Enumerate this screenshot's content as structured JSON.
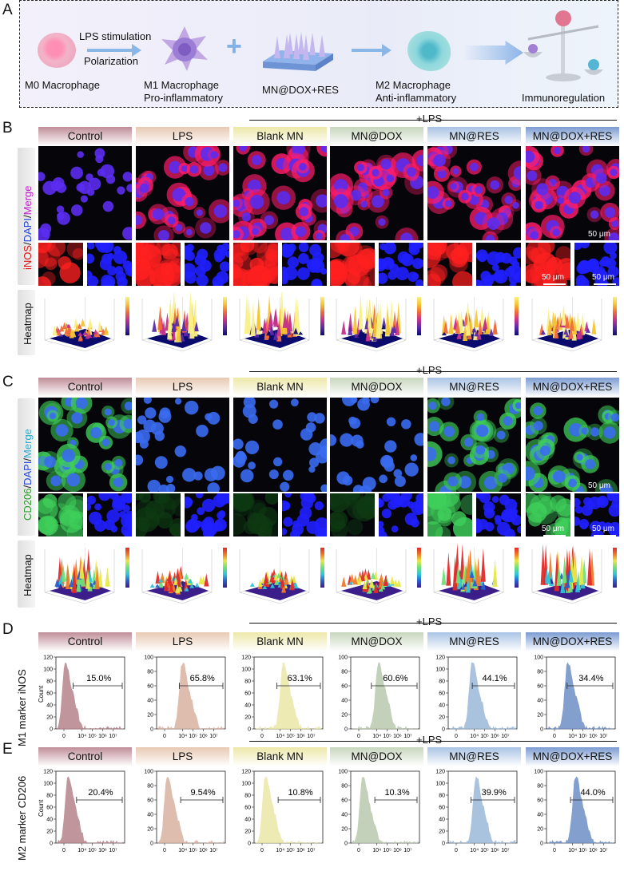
{
  "panel_labels": {
    "a": "A",
    "b": "B",
    "c": "C",
    "d": "D",
    "e": "E"
  },
  "panel_a": {
    "m0": "M0 Macrophage",
    "arrow1_top": "LPS stimulation",
    "arrow1_bottom": "Polarization",
    "m1_line1": "M1 Macrophage",
    "m1_line2": "Pro-inflammatory",
    "plus": "+",
    "mn": "MN@DOX+RES",
    "m2_line1": "M2 Macrophage",
    "m2_line2": "Anti-inflammatory",
    "immuno": "Immunoregulation"
  },
  "groups": [
    "Control",
    "LPS",
    "Blank MN",
    "MN@DOX",
    "MN@RES",
    "MN@DOX+RES"
  ],
  "lps_label": "+LPS",
  "panel_b": {
    "row_merge_label_parts": [
      "iNOS",
      "/",
      "DAPI",
      "/",
      "Merge"
    ],
    "row_heat_label": "Heatmap",
    "scale_big": "50 μm",
    "scale_small": "50 μm"
  },
  "panel_c": {
    "row_merge_label_parts": [
      "CD206",
      "/",
      "DAPI",
      "/",
      "Merge"
    ],
    "row_heat_label": "Heatmap",
    "scale_big": "50 μm",
    "scale_small": "50 μm"
  },
  "panel_d": {
    "ylabel": "M1 marker iNOS",
    "count": "Count",
    "percentages": [
      "15.0%",
      "65.8%",
      "63.1%",
      "60.6%",
      "44.1%",
      "34.4%"
    ],
    "x_ticks": [
      "0",
      "10⁴",
      "10⁵",
      "10⁶",
      "10⁷"
    ],
    "y_ticks_a": [
      "120",
      "100",
      "80",
      "60",
      "40",
      "20",
      "0"
    ],
    "y_ticks_b": [
      "100",
      "80",
      "60",
      "40",
      "20",
      "0"
    ],
    "peak_pos": [
      0.12,
      0.37,
      0.42,
      0.4,
      0.34,
      0.3
    ],
    "gate_start": [
      0.25,
      0.33,
      0.33,
      0.3,
      0.35,
      0.3
    ],
    "colors": [
      "#b7838b",
      "#d9b1a0",
      "#ece7a8",
      "#b9c9ae",
      "#9bb8d9",
      "#6e8fc6"
    ]
  },
  "panel_e": {
    "ylabel": "M2 marker CD206",
    "count": "Count",
    "percentages": [
      "20.4%",
      "9.54%",
      "10.8%",
      "10.3%",
      "39.9%",
      "44.0%"
    ],
    "x_ticks": [
      "0",
      "10⁴",
      "10⁵",
      "10⁶",
      "10⁷"
    ],
    "y_ticks_a": [
      "120",
      "100",
      "80",
      "60",
      "40",
      "20",
      "0"
    ],
    "y_ticks_b": [
      "100",
      "80",
      "60",
      "40",
      "20",
      "0"
    ],
    "peak_pos": [
      0.16,
      0.14,
      0.15,
      0.16,
      0.4,
      0.42
    ],
    "gate_start": [
      0.3,
      0.35,
      0.35,
      0.35,
      0.33,
      0.35
    ],
    "colors": [
      "#b7838b",
      "#d9b1a0",
      "#ece7a8",
      "#b9c9ae",
      "#9bb8d9",
      "#6e8fc6"
    ]
  },
  "header_gradients": [
    [
      "#c08e98",
      "#ffffff"
    ],
    [
      "#e7c9b3",
      "#ffffff"
    ],
    [
      "#ede8a9",
      "#ffffff"
    ],
    [
      "#c7d6bd",
      "#ffffff"
    ],
    [
      "#a9c3e4",
      "#ffffff"
    ],
    [
      "#7b9bd2",
      "#ffffff"
    ]
  ]
}
